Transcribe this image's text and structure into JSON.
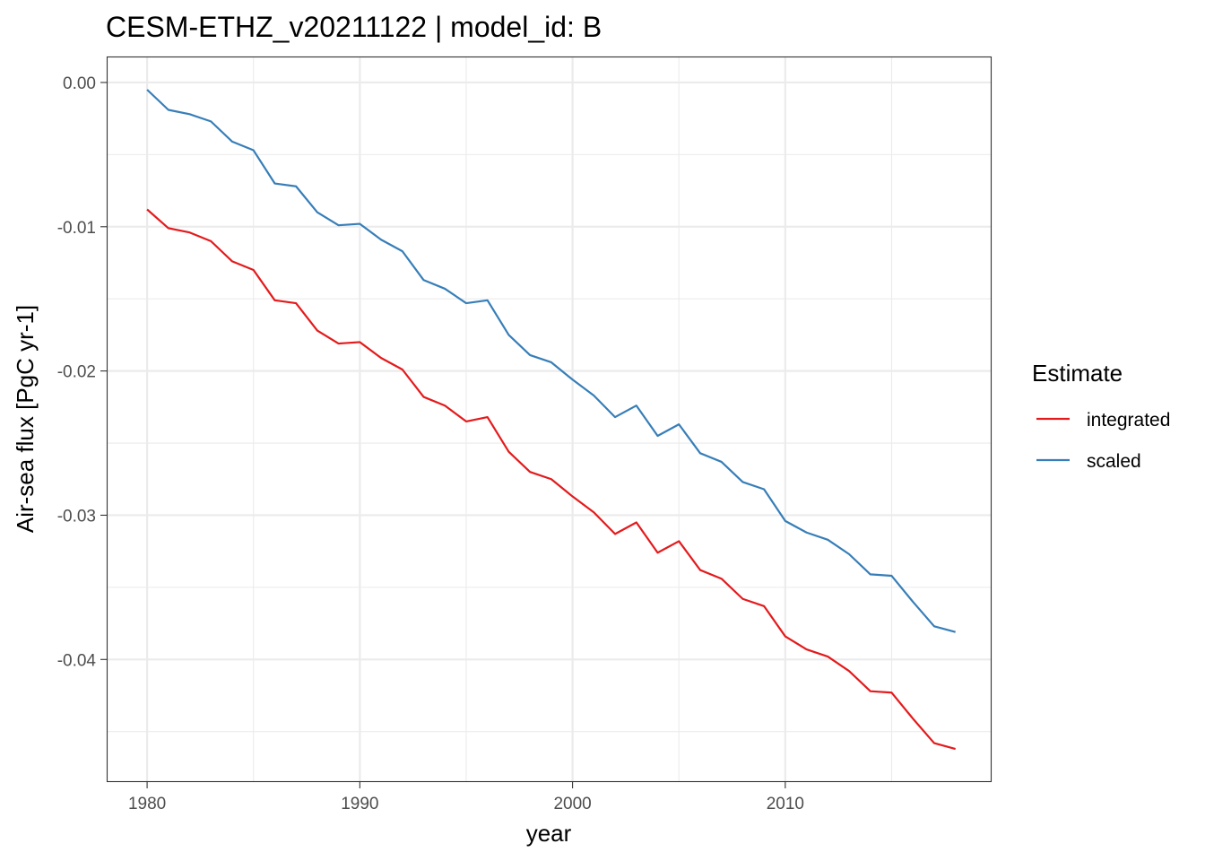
{
  "chart_data": {
    "type": "line",
    "title": "CESM-ETHZ_v20211122 | model_id: B",
    "xlabel": "year",
    "ylabel": "Air-sea flux [PgC yr-1]",
    "xlim": [
      1978.1,
      2019.7
    ],
    "ylim": [
      -0.0485,
      0.0018
    ],
    "x_ticks": [
      1980,
      1990,
      2000,
      2010
    ],
    "x_tick_labels": [
      "1980",
      "1990",
      "2000",
      "2010"
    ],
    "y_ticks": [
      0,
      -0.01,
      -0.02,
      -0.03,
      -0.04
    ],
    "y_tick_labels": [
      "0.00",
      "-0.01",
      "-0.02",
      "-0.03",
      "-0.04"
    ],
    "grid": true,
    "legend": {
      "title": "Estimate",
      "position": "right"
    },
    "x": [
      1980,
      1981,
      1982,
      1983,
      1984,
      1985,
      1986,
      1987,
      1988,
      1989,
      1990,
      1991,
      1992,
      1993,
      1994,
      1995,
      1996,
      1997,
      1998,
      1999,
      2000,
      2001,
      2002,
      2003,
      2004,
      2005,
      2006,
      2007,
      2008,
      2009,
      2010,
      2011,
      2012,
      2013,
      2014,
      2015,
      2016,
      2017,
      2018
    ],
    "series": [
      {
        "name": "integrated",
        "color": "#e41a1c",
        "values": [
          -0.0088,
          -0.0101,
          -0.0104,
          -0.011,
          -0.0124,
          -0.013,
          -0.0151,
          -0.0153,
          -0.0172,
          -0.0181,
          -0.018,
          -0.0191,
          -0.0199,
          -0.0218,
          -0.0224,
          -0.0235,
          -0.0232,
          -0.0256,
          -0.027,
          -0.0275,
          -0.0287,
          -0.0298,
          -0.0313,
          -0.0305,
          -0.0326,
          -0.0318,
          -0.0338,
          -0.0344,
          -0.0358,
          -0.0363,
          -0.0384,
          -0.0393,
          -0.0398,
          -0.0408,
          -0.0422,
          -0.0423,
          -0.0441,
          -0.0458,
          -0.0462
        ]
      },
      {
        "name": "scaled",
        "color": "#377eb8",
        "values": [
          -0.0005,
          -0.0019,
          -0.0022,
          -0.0027,
          -0.0041,
          -0.0047,
          -0.007,
          -0.0072,
          -0.009,
          -0.0099,
          -0.0098,
          -0.0109,
          -0.0117,
          -0.0137,
          -0.0143,
          -0.0153,
          -0.0151,
          -0.0175,
          -0.0189,
          -0.0194,
          -0.0206,
          -0.0217,
          -0.0232,
          -0.0224,
          -0.0245,
          -0.0237,
          -0.0257,
          -0.0263,
          -0.0277,
          -0.0282,
          -0.0304,
          -0.0312,
          -0.0317,
          -0.0327,
          -0.0341,
          -0.0342,
          -0.036,
          -0.0377,
          -0.0381
        ]
      }
    ]
  }
}
